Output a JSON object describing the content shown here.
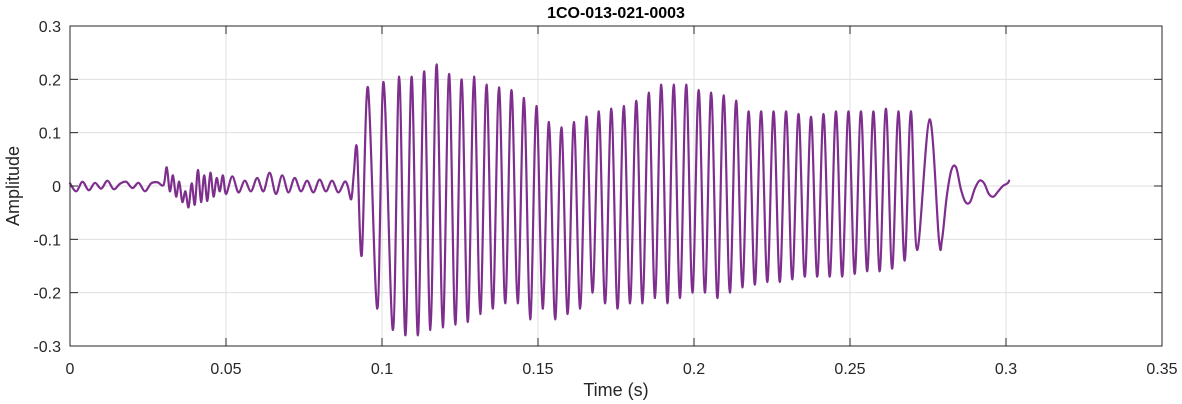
{
  "chart_data": {
    "type": "line",
    "title": "1CO-013-021-0003",
    "xlabel": "Time (s)",
    "ylabel": "Amplitude",
    "xlim": [
      0,
      0.35
    ],
    "ylim": [
      -0.3,
      0.3
    ],
    "xticks": [
      0,
      0.05,
      0.1,
      0.15,
      0.2,
      0.25,
      0.3,
      0.35
    ],
    "xtick_labels": [
      "0",
      "0.05",
      "0.1",
      "0.15",
      "0.2",
      "0.25",
      "0.3",
      "0.35"
    ],
    "yticks": [
      -0.3,
      -0.2,
      -0.1,
      0,
      0.1,
      0.2,
      0.3
    ],
    "ytick_labels": [
      "-0.3",
      "-0.2",
      "-0.1",
      "0",
      "0.1",
      "0.2",
      "0.3"
    ],
    "grid": true,
    "series": [
      {
        "color": "#7E2F8E",
        "x": [
          0.0,
          0.002,
          0.004,
          0.006,
          0.008,
          0.01,
          0.012,
          0.014,
          0.016,
          0.018,
          0.02,
          0.022,
          0.024,
          0.026,
          0.028,
          0.03,
          0.031,
          0.032,
          0.033,
          0.034,
          0.035,
          0.036,
          0.037,
          0.038,
          0.039,
          0.04,
          0.041,
          0.042,
          0.043,
          0.044,
          0.045,
          0.046,
          0.047,
          0.048,
          0.049,
          0.05,
          0.052,
          0.054,
          0.056,
          0.058,
          0.06,
          0.062,
          0.064,
          0.066,
          0.068,
          0.07,
          0.072,
          0.074,
          0.076,
          0.078,
          0.08,
          0.082,
          0.084,
          0.086,
          0.088,
          0.089,
          0.09,
          0.0905,
          0.091,
          0.092
        ],
        "y": [
          0.005,
          -0.01,
          0.008,
          -0.008,
          0.006,
          -0.005,
          0.01,
          -0.006,
          0.004,
          0.008,
          -0.004,
          0.006,
          -0.01,
          0.005,
          0.007,
          0.002,
          0.035,
          -0.01,
          0.02,
          -0.02,
          0.008,
          -0.03,
          -0.01,
          -0.04,
          0.005,
          -0.035,
          0.03,
          -0.03,
          0.02,
          -0.028,
          0.025,
          -0.02,
          0.015,
          -0.01,
          0.02,
          -0.015,
          0.018,
          -0.012,
          0.01,
          -0.01,
          0.015,
          -0.01,
          0.025,
          -0.015,
          0.02,
          -0.012,
          0.015,
          -0.01,
          0.01,
          -0.012,
          0.012,
          -0.01,
          0.01,
          -0.012,
          0.008,
          0.0,
          -0.025,
          -0.01,
          0.025,
          0.07
        ]
      }
    ],
    "oscillation": {
      "start": 0.0925,
      "end": 0.2795,
      "peaks_x": [
        0.0955,
        0.1005,
        0.1055,
        0.1095,
        0.1135,
        0.1175,
        0.1215,
        0.1255,
        0.1295,
        0.1335,
        0.1375,
        0.1415,
        0.1455,
        0.1495,
        0.1535,
        0.1575,
        0.1615,
        0.1655,
        0.1695,
        0.1735,
        0.1775,
        0.1815,
        0.1855,
        0.1895,
        0.1935,
        0.1975,
        0.2015,
        0.2055,
        0.2095,
        0.2135,
        0.2175,
        0.2215,
        0.2255,
        0.2295,
        0.2335,
        0.2375,
        0.2415,
        0.2455,
        0.2495,
        0.2535,
        0.2575,
        0.2615,
        0.2655,
        0.2695,
        0.2755
      ],
      "peaks_y": [
        0.185,
        0.195,
        0.205,
        0.205,
        0.215,
        0.228,
        0.21,
        0.2,
        0.205,
        0.19,
        0.185,
        0.18,
        0.165,
        0.15,
        0.12,
        0.11,
        0.12,
        0.13,
        0.14,
        0.145,
        0.15,
        0.16,
        0.175,
        0.19,
        0.19,
        0.19,
        0.18,
        0.175,
        0.17,
        0.16,
        0.14,
        0.14,
        0.14,
        0.14,
        0.135,
        0.13,
        0.135,
        0.14,
        0.14,
        0.14,
        0.14,
        0.145,
        0.14,
        0.14,
        0.125
      ],
      "troughs_x": [
        0.0935,
        0.0985,
        0.1035,
        0.1075,
        0.1115,
        0.1155,
        0.1195,
        0.1235,
        0.1275,
        0.1315,
        0.1355,
        0.1395,
        0.1435,
        0.1475,
        0.1515,
        0.1555,
        0.1595,
        0.1635,
        0.1675,
        0.1715,
        0.1755,
        0.1795,
        0.1835,
        0.1875,
        0.1915,
        0.1955,
        0.1995,
        0.2035,
        0.2075,
        0.2115,
        0.2155,
        0.2195,
        0.2235,
        0.2275,
        0.2315,
        0.2355,
        0.2395,
        0.2435,
        0.2475,
        0.2515,
        0.2555,
        0.2595,
        0.2635,
        0.2675,
        0.2715,
        0.2785
      ],
      "troughs_y": [
        -0.13,
        -0.23,
        -0.27,
        -0.28,
        -0.28,
        -0.27,
        -0.265,
        -0.26,
        -0.255,
        -0.24,
        -0.23,
        -0.22,
        -0.22,
        -0.25,
        -0.23,
        -0.25,
        -0.24,
        -0.23,
        -0.2,
        -0.22,
        -0.23,
        -0.22,
        -0.22,
        -0.21,
        -0.22,
        -0.21,
        -0.2,
        -0.2,
        -0.21,
        -0.2,
        -0.19,
        -0.185,
        -0.18,
        -0.18,
        -0.175,
        -0.17,
        -0.17,
        -0.17,
        -0.17,
        -0.165,
        -0.16,
        -0.16,
        -0.155,
        -0.14,
        -0.12,
        -0.1
      ]
    },
    "tail": {
      "x": [
        0.2795,
        0.281,
        0.2825,
        0.284,
        0.2855,
        0.287,
        0.2885,
        0.29,
        0.2915,
        0.293,
        0.2945,
        0.296,
        0.2975,
        0.299,
        0.3005,
        0.301
      ],
      "y": [
        -0.1,
        -0.02,
        0.03,
        0.035,
        -0.005,
        -0.03,
        -0.03,
        -0.005,
        0.01,
        0.005,
        -0.015,
        -0.02,
        -0.01,
        0.0,
        0.005,
        0.01
      ]
    }
  }
}
